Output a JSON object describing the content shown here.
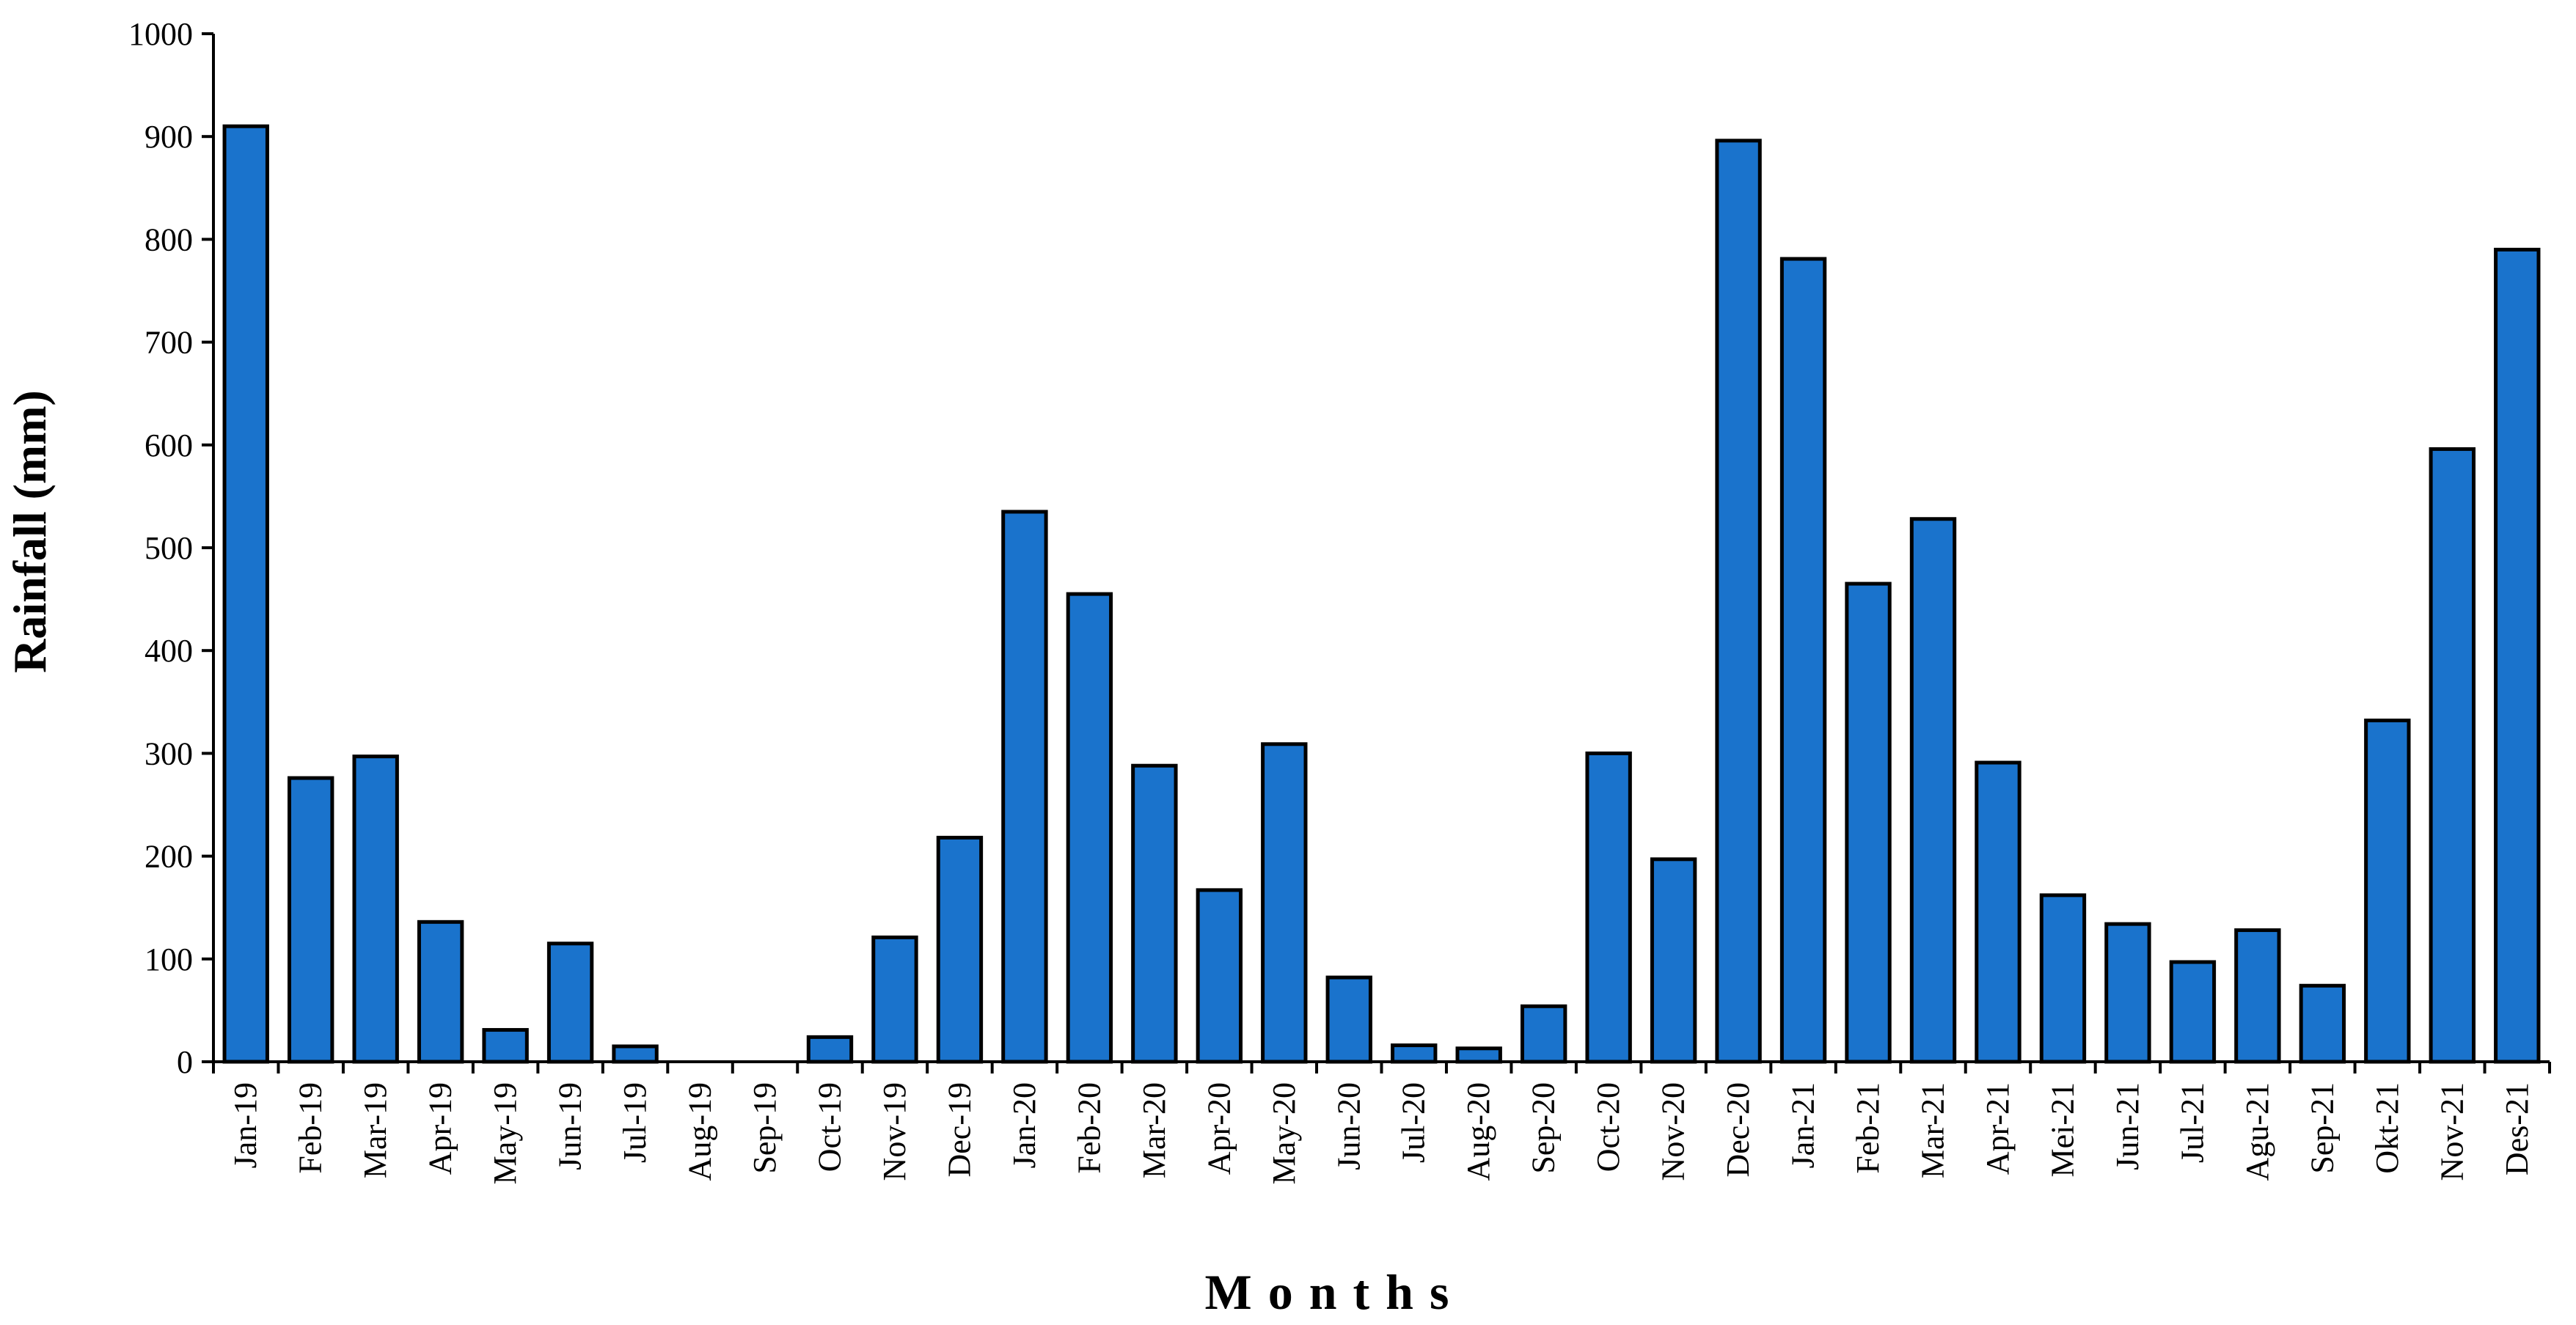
{
  "chart_data": {
    "type": "bar",
    "xlabel": "Months",
    "ylabel": "Rainfall (mm)",
    "ylim": [
      0,
      1000
    ],
    "yticks": [
      0,
      100,
      200,
      300,
      400,
      500,
      600,
      700,
      800,
      900,
      1000
    ],
    "bar_color": "#1a73cc",
    "categories": [
      "Jan-19",
      "Feb-19",
      "Mar-19",
      "Apr-19",
      "May-19",
      "Jun-19",
      "Jul-19",
      "Aug-19",
      "Sep-19",
      "Oct-19",
      "Nov-19",
      "Dec-19",
      "Jan-20",
      "Feb-20",
      "Mar-20",
      "Apr-20",
      "May-20",
      "Jun-20",
      "Jul-20",
      "Aug-20",
      "Sep-20",
      "Oct-20",
      "Nov-20",
      "Dec-20",
      "Jan-21",
      "Feb-21",
      "Mar-21",
      "Apr-21",
      "Mei-21",
      "Jun-21",
      "Jul-21",
      "Agu-21",
      "Sep-21",
      "Okt-21",
      "Nov-21",
      "Des-21"
    ],
    "values": [
      910,
      276,
      297,
      136,
      31,
      115,
      15,
      0,
      0,
      24,
      121,
      218,
      535,
      455,
      288,
      167,
      309,
      82,
      16,
      13,
      54,
      300,
      197,
      896,
      781,
      465,
      528,
      291,
      162,
      134,
      97,
      128,
      74,
      332,
      596,
      790
    ]
  }
}
